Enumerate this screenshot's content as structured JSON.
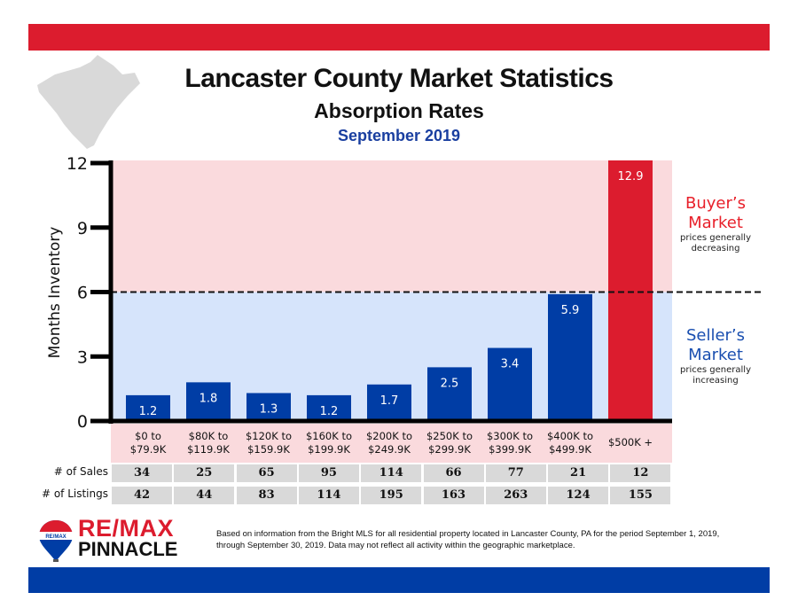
{
  "header": {
    "title": "Lancaster County Market Statistics",
    "subtitle": "Absorption Rates",
    "period": "September 2019"
  },
  "colors": {
    "brand_red": "#dc1c2e",
    "brand_blue": "#003da5",
    "buyer_zone": "#fadadd",
    "seller_zone": "#d6e4fb",
    "bar_blue": "#003da5",
    "bar_red": "#dc1c2e",
    "table_gray": "#d9d9d9"
  },
  "chart_data": {
    "type": "bar",
    "title": "Absorption Rates",
    "xlabel": "",
    "ylabel": "Months Inventory",
    "ylim": [
      0,
      12
    ],
    "yticks": [
      "0",
      "3",
      "6",
      "9",
      "12"
    ],
    "threshold": 6,
    "categories": [
      [
        "$0 to",
        "$79.9K"
      ],
      [
        "$80K to",
        "$119.9K"
      ],
      [
        "$120K to",
        "$159.9K"
      ],
      [
        "$160K to",
        "$199.9K"
      ],
      [
        "$200K to",
        "$249.9K"
      ],
      [
        "$250K to",
        "$299.9K"
      ],
      [
        "$300K to",
        "$399.9K"
      ],
      [
        "$400K to",
        "$499.9K"
      ],
      [
        "$500K +"
      ]
    ],
    "values": [
      1.2,
      1.8,
      1.3,
      1.2,
      1.7,
      2.5,
      3.4,
      5.9,
      12.9
    ],
    "labels": [
      "1.2",
      "1.8",
      "1.3",
      "1.2",
      "1.7",
      "2.5",
      "3.4",
      "5.9",
      "12.9"
    ],
    "highlight_index": 8,
    "zones": {
      "buyer": {
        "title_line1": "Buyer’s",
        "title_line2": "Market",
        "note_line1": "prices generally",
        "note_line2": "decreasing",
        "color": "#e8202a"
      },
      "seller": {
        "title_line1": "Seller’s",
        "title_line2": "Market",
        "note_line1": "prices generally",
        "note_line2": "increasing",
        "color": "#1a4fb0"
      }
    }
  },
  "table": {
    "sales_label": "# of Sales",
    "listings_label": "# of Listings",
    "sales": [
      "34",
      "25",
      "65",
      "95",
      "114",
      "66",
      "77",
      "21",
      "12"
    ],
    "listings": [
      "42",
      "44",
      "83",
      "114",
      "195",
      "163",
      "263",
      "124",
      "155"
    ]
  },
  "footer": {
    "logo_line1": "RE/MAX",
    "logo_line2": "PINNACLE",
    "balloon_text": "RE/MAX",
    "disclaimer": "Based on information from the Bright MLS for all residential property located in Lancaster County, PA for the period September 1, 2019, through September 30, 2019.  Data may not reflect all activity within the geographic marketplace."
  }
}
